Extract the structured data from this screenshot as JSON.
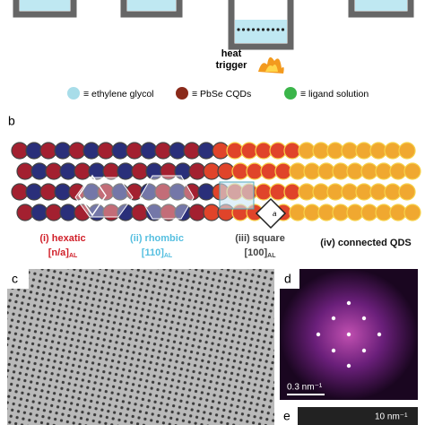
{
  "panel_a": {
    "trigger": [
      "heat",
      "trigger"
    ],
    "legend": [
      "≡ ethylene glycol",
      "≡ PbSe CQDs",
      "≡ ligand solution"
    ]
  },
  "panel_b": {
    "label": "b",
    "phases": [
      {
        "name": "(i) hexatic",
        "index": "[n/a]",
        "sub": "AL"
      },
      {
        "name": "(ii) rhombic",
        "index": "[110]",
        "sub": "AL"
      },
      {
        "name": "(iii) square",
        "index": "[100]",
        "sub": "AL"
      },
      {
        "name": "(iv) connected QDS"
      }
    ],
    "cell_label": "a"
  },
  "panel_c": {
    "label": "c"
  },
  "panel_d": {
    "label": "d",
    "scale": "0.3 nm⁻¹"
  },
  "panel_e": {
    "label": "e",
    "scale": "10 nm⁻¹"
  }
}
